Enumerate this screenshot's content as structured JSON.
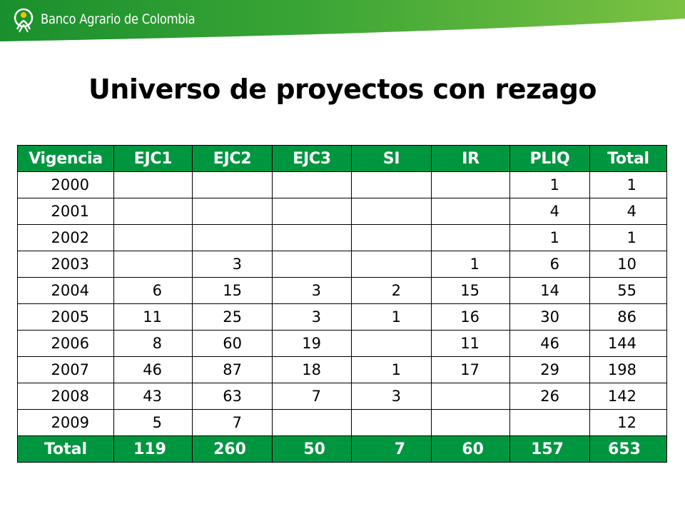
{
  "header": {
    "brand": "Banco Agrario de Colombia",
    "colors": {
      "green_dark": "#1a8f2e",
      "green_light": "#7cc242",
      "table_green": "#009640"
    }
  },
  "title": "Universo de proyectos con rezago",
  "table": {
    "columns": [
      "Vigencia",
      "EJC1",
      "EJC2",
      "EJC3",
      "SI",
      "IR",
      "PLIQ",
      "Total"
    ],
    "rows": [
      [
        "2000",
        "",
        "",
        "",
        "",
        "",
        "1",
        "1"
      ],
      [
        "2001",
        "",
        "",
        "",
        "",
        "",
        "4",
        "4"
      ],
      [
        "2002",
        "",
        "",
        "",
        "",
        "",
        "1",
        "1"
      ],
      [
        "2003",
        "",
        "3",
        "",
        "",
        "1",
        "6",
        "10"
      ],
      [
        "2004",
        "6",
        "15",
        "3",
        "2",
        "15",
        "14",
        "55"
      ],
      [
        "2005",
        "11",
        "25",
        "3",
        "1",
        "16",
        "30",
        "86"
      ],
      [
        "2006",
        "8",
        "60",
        "19",
        "",
        "11",
        "46",
        "144"
      ],
      [
        "2007",
        "46",
        "87",
        "18",
        "1",
        "17",
        "29",
        "198"
      ],
      [
        "2008",
        "43",
        "63",
        "7",
        "3",
        "",
        "26",
        "142"
      ],
      [
        "2009",
        "5",
        "7",
        "",
        "",
        "",
        "",
        "12"
      ]
    ],
    "total": [
      "Total",
      "119",
      "260",
      "50",
      "7",
      "60",
      "157",
      "653"
    ]
  }
}
